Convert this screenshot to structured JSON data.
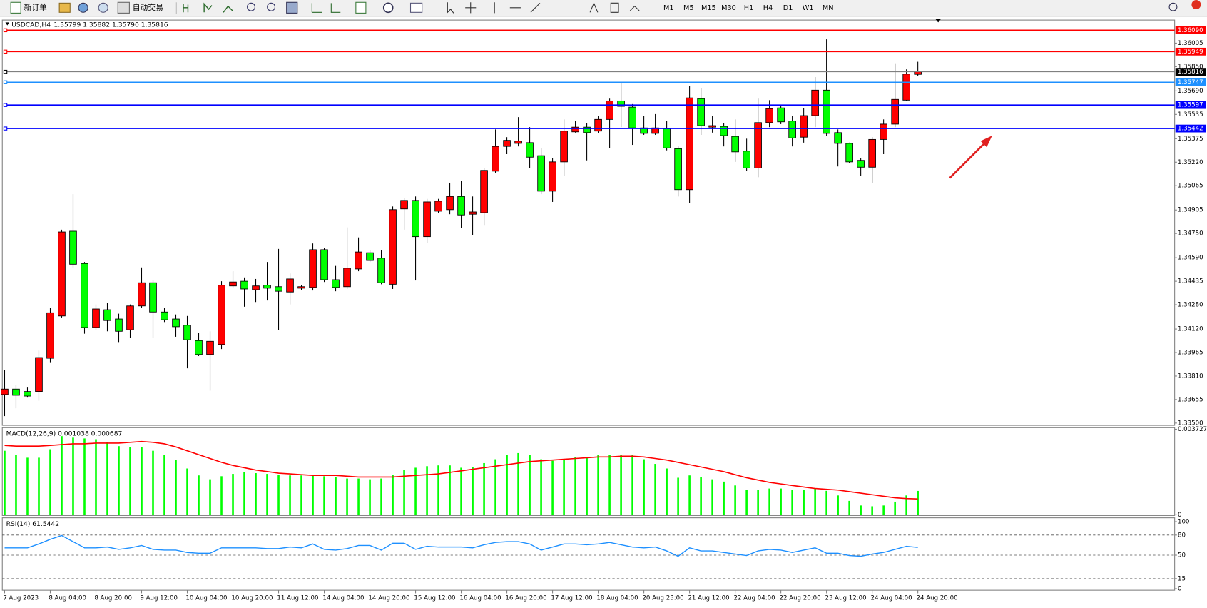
{
  "toolbar": {
    "buttons": [
      "新订单",
      "自动交易"
    ],
    "timeframes": [
      "M1",
      "M5",
      "M15",
      "M30",
      "H1",
      "H4",
      "D1",
      "W1",
      "MN"
    ]
  },
  "chart_data": [
    {
      "type": "candlestick",
      "title": "USDCAD,H4",
      "ohlc_label": "1.35799 1.35882 1.35790 1.35816",
      "categories": [
        "7 Aug 2023",
        null,
        null,
        null,
        "8 Aug 04:00",
        null,
        null,
        null,
        "8 Aug 20:00",
        null,
        null,
        null,
        "9 Aug 12:00",
        null,
        null,
        null,
        "10 Aug 04:00",
        null,
        null,
        null,
        "10 Aug 20:00",
        null,
        null,
        null,
        "11 Aug 12:00",
        null,
        null,
        null,
        "14 Aug 04:00",
        null,
        null,
        null,
        "14 Aug 20:00",
        null,
        null,
        null,
        "15 Aug 12:00",
        null,
        null,
        null,
        "16 Aug 04:00",
        null,
        null,
        null,
        "16 Aug 20:00",
        null,
        null,
        null,
        "17 Aug 12:00",
        null,
        null,
        null,
        "18 Aug 04:00",
        null,
        null,
        null,
        "20 Aug 23:00",
        null,
        null,
        null,
        "21 Aug 12:00",
        null,
        null,
        null,
        "22 Aug 04:00",
        null,
        null,
        null,
        "22 Aug 20:00",
        null,
        null,
        null,
        "23 Aug 12:00",
        null,
        null,
        null,
        "24 Aug 04:00",
        null,
        null,
        null,
        "24 Aug 20:00"
      ],
      "open": [
        1.33688,
        1.33724,
        1.33708,
        1.33708,
        1.33927,
        1.34206,
        1.34765,
        1.34552,
        1.3413,
        1.34247,
        1.34186,
        1.34115,
        1.34272,
        1.34425,
        1.34232,
        1.34186,
        1.34145,
        1.34044,
        1.33952,
        1.34018,
        1.34404,
        1.34435,
        1.34379,
        1.34409,
        1.34399,
        1.34364,
        1.34389,
        1.34394,
        1.34643,
        1.34445,
        1.34399,
        1.34516,
        1.34623,
        1.34587,
        1.34415,
        1.34912,
        1.34968,
        1.34729,
        1.34897,
        1.34907,
        1.34994,
        1.34877,
        1.34887,
        1.35161,
        1.35324,
        1.35344,
        1.35349,
        1.35263,
        1.35029,
        1.35222,
        1.3542,
        1.35451,
        1.35425,
        1.35502,
        1.35624,
        1.35583,
        1.35446,
        1.3541,
        1.35441,
        1.35309,
        1.35039,
        1.35639,
        1.35451,
        1.35456,
        1.3539,
        1.35293,
        1.35182,
        1.35481,
        1.35578,
        1.35491,
        1.35385,
        1.35527,
        1.35695,
        1.35415,
        1.35344,
        1.35232,
        1.35187,
        1.3537,
        1.35471,
        1.35629,
        1.35799
      ],
      "high": [
        1.33851,
        1.33749,
        1.33734,
        1.33978,
        1.34257,
        1.34775,
        1.35009,
        1.34562,
        1.34282,
        1.34293,
        1.34221,
        1.34282,
        1.34526,
        1.34445,
        1.34257,
        1.34216,
        1.34206,
        1.34094,
        1.34105,
        1.34435,
        1.34501,
        1.3446,
        1.3445,
        1.34562,
        1.34648,
        1.34486,
        1.34409,
        1.34684,
        1.34653,
        1.34536,
        1.3479,
        1.34724,
        1.34638,
        1.34638,
        1.34928,
        1.34983,
        1.34994,
        1.34978,
        1.34978,
        1.35085,
        1.35095,
        1.34994,
        1.35182,
        1.35436,
        1.35385,
        1.35517,
        1.35451,
        1.35314,
        1.35248,
        1.35502,
        1.35491,
        1.35476,
        1.35527,
        1.35639,
        1.3574,
        1.35603,
        1.35527,
        1.35537,
        1.35491,
        1.35324,
        1.3572,
        1.3571,
        1.35527,
        1.35476,
        1.35502,
        1.35375,
        1.35639,
        1.35629,
        1.35593,
        1.35527,
        1.35578,
        1.35781,
        1.3603,
        1.35436,
        1.35349,
        1.35248,
        1.35385,
        1.35502,
        1.35872,
        1.35832,
        1.35882
      ],
      "low": [
        1.33546,
        1.33597,
        1.33668,
        1.33647,
        1.33901,
        1.34196,
        1.34526,
        1.34089,
        1.34115,
        1.34105,
        1.34034,
        1.34064,
        1.34257,
        1.34064,
        1.34166,
        1.34069,
        1.33861,
        1.33942,
        1.33713,
        1.33988,
        1.34394,
        1.34267,
        1.34298,
        1.34308,
        1.34115,
        1.34282,
        1.34379,
        1.34374,
        1.3443,
        1.34369,
        1.34384,
        1.34501,
        1.34562,
        1.34415,
        1.34384,
        1.34775,
        1.3444,
        1.34689,
        1.34887,
        1.34877,
        1.34785,
        1.3474,
        1.34806,
        1.35146,
        1.35273,
        1.35324,
        1.35182,
        1.35009,
        1.34958,
        1.35131,
        1.35415,
        1.35232,
        1.3541,
        1.35314,
        1.35451,
        1.35334,
        1.354,
        1.354,
        1.35298,
        1.34994,
        1.34953,
        1.354,
        1.35415,
        1.35324,
        1.35222,
        1.35161,
        1.35121,
        1.35451,
        1.35471,
        1.35324,
        1.35349,
        1.35451,
        1.35395,
        1.35192,
        1.35212,
        1.35131,
        1.35085,
        1.35273,
        1.35451,
        1.35624,
        1.3579
      ],
      "close": [
        1.33724,
        1.33683,
        1.33678,
        1.33932,
        1.34227,
        1.3476,
        1.34547,
        1.3413,
        1.34252,
        1.34176,
        1.34105,
        1.34272,
        1.34425,
        1.34232,
        1.34181,
        1.34135,
        1.34049,
        1.33952,
        1.34039,
        1.34409,
        1.3443,
        1.34384,
        1.34404,
        1.34389,
        1.34369,
        1.3445,
        1.34399,
        1.34643,
        1.34445,
        1.34394,
        1.34521,
        1.34628,
        1.34572,
        1.34425,
        1.34907,
        1.34968,
        1.34729,
        1.34958,
        1.34963,
        1.34994,
        1.34872,
        1.34892,
        1.35166,
        1.35324,
        1.35364,
        1.35359,
        1.35253,
        1.35029,
        1.35222,
        1.35425,
        1.35451,
        1.35415,
        1.35502,
        1.35624,
        1.35588,
        1.35446,
        1.3541,
        1.35446,
        1.35314,
        1.35039,
        1.35644,
        1.35461,
        1.35461,
        1.35395,
        1.35288,
        1.35182,
        1.35481,
        1.35573,
        1.35486,
        1.3538,
        1.35527,
        1.35695,
        1.3541,
        1.35344,
        1.35222,
        1.35187,
        1.3537,
        1.35471,
        1.35634,
        1.35801,
        1.35816
      ],
      "up_color": "#ff0000",
      "down_color": "#00ff00",
      "ylim": [
        1.3349,
        1.36152
      ],
      "yticks": [
        {
          "value": 1.36005,
          "label": "1.36005"
        },
        {
          "value": 1.3585,
          "label": "1.35850"
        },
        {
          "value": 1.3569,
          "label": "1.35690"
        },
        {
          "value": 1.35535,
          "label": "1.35535"
        },
        {
          "value": 1.35375,
          "label": "1.35375"
        },
        {
          "value": 1.3522,
          "label": "1.35220"
        },
        {
          "value": 1.35065,
          "label": "1.35065"
        },
        {
          "value": 1.34905,
          "label": "1.34905"
        },
        {
          "value": 1.3475,
          "label": "1.34750"
        },
        {
          "value": 1.3459,
          "label": "1.34590"
        },
        {
          "value": 1.34435,
          "label": "1.34435"
        },
        {
          "value": 1.3428,
          "label": "1.34280"
        },
        {
          "value": 1.3412,
          "label": "1.34120"
        },
        {
          "value": 1.33965,
          "label": "1.33965"
        },
        {
          "value": 1.3381,
          "label": "1.33810"
        },
        {
          "value": 1.33655,
          "label": "1.33655"
        },
        {
          "value": 1.335,
          "label": "1.33500"
        }
      ],
      "levels": [
        {
          "value": 1.3609,
          "label": "1.36090",
          "color": "#ff0000"
        },
        {
          "value": 1.35949,
          "label": "1.35949",
          "color": "#ff0000"
        },
        {
          "value": 1.35816,
          "label": "1.35816",
          "color": "#000000"
        },
        {
          "value": 1.35747,
          "label": "1.35747",
          "color": "#1e90ff"
        },
        {
          "value": 1.35597,
          "label": "1.35597",
          "color": "#0000ff"
        },
        {
          "value": 1.35442,
          "label": "1.35442",
          "color": "#0000ff"
        }
      ],
      "grid": false
    },
    {
      "type": "macd",
      "title": "MACD(12,26,9) 0.001038 0.000687",
      "series": [
        {
          "type": "bar",
          "color": "#00ff00",
          "values": [
            0.002787,
            0.002619,
            0.002485,
            0.002485,
            0.002854,
            0.003425,
            0.003358,
            0.003324,
            0.003291,
            0.003157,
            0.002989,
            0.002955,
            0.002955,
            0.002787,
            0.002619,
            0.002384,
            0.002015,
            0.001713,
            0.001545,
            0.001679,
            0.00178,
            0.001847,
            0.001813,
            0.00178,
            0.001746,
            0.001713,
            0.001713,
            0.001713,
            0.001679,
            0.001645,
            0.001578,
            0.001578,
            0.001545,
            0.001578,
            0.001746,
            0.001948,
            0.002048,
            0.002116,
            0.002149,
            0.002149,
            0.002048,
            0.002082,
            0.00225,
            0.002418,
            0.002619,
            0.002686,
            0.002619,
            0.002418,
            0.002351,
            0.002418,
            0.002519,
            0.002519,
            0.002619,
            0.002619,
            0.002619,
            0.002619,
            0.002418,
            0.002216,
            0.002015,
            0.001612,
            0.001713,
            0.001645,
            0.001545,
            0.001444,
            0.001276,
            0.001075,
            0.001075,
            0.001142,
            0.001142,
            0.001075,
            0.001075,
            0.001142,
            0.001041,
            0.00084,
            0.000604,
            0.000403,
            0.000369,
            0.000403,
            0.000571,
            0.00084,
            0.001038
          ]
        },
        {
          "type": "line",
          "color": "#ff0000",
          "values": [
            0.003022,
            0.002989,
            0.002989,
            0.002989,
            0.003022,
            0.003056,
            0.003089,
            0.003089,
            0.003123,
            0.003123,
            0.003123,
            0.003157,
            0.00319,
            0.003157,
            0.003089,
            0.002955,
            0.002787,
            0.002619,
            0.002451,
            0.002283,
            0.002149,
            0.002048,
            0.001948,
            0.00188,
            0.001813,
            0.00178,
            0.001746,
            0.001713,
            0.001713,
            0.001713,
            0.001679,
            0.001645,
            0.001645,
            0.001645,
            0.001645,
            0.001679,
            0.001713,
            0.001746,
            0.00178,
            0.001847,
            0.001914,
            0.001981,
            0.002048,
            0.002116,
            0.002183,
            0.00225,
            0.002317,
            0.002351,
            0.002384,
            0.002418,
            0.002451,
            0.002485,
            0.002519,
            0.002519,
            0.002552,
            0.002552,
            0.002519,
            0.002451,
            0.002384,
            0.002283,
            0.002183,
            0.002082,
            0.001981,
            0.00188,
            0.001746,
            0.001612,
            0.001511,
            0.00141,
            0.001343,
            0.001276,
            0.001209,
            0.001142,
            0.001108,
            0.001075,
            0.001007,
            0.00094,
            0.000873,
            0.000806,
            0.000739,
            0.000705,
            0.000687
          ]
        }
      ],
      "ylim": [
        0,
        0.003727
      ],
      "yticks": [
        0,
        0.003727
      ]
    },
    {
      "type": "line",
      "title": "RSI(14) 61.5442",
      "color": "#1e90ff",
      "values": [
        60.9,
        60.9,
        60.9,
        66.7,
        73.6,
        79.3,
        70.1,
        60.9,
        60.9,
        62.1,
        58.6,
        60.9,
        64.4,
        58.6,
        57.5,
        57.5,
        54.0,
        52.9,
        52.9,
        60.9,
        60.9,
        60.9,
        60.9,
        59.8,
        59.8,
        62.1,
        60.9,
        66.7,
        58.6,
        57.5,
        59.8,
        64.4,
        64.4,
        57.5,
        67.8,
        67.8,
        58.6,
        63.2,
        62.1,
        62.1,
        62.1,
        60.9,
        65.5,
        69.0,
        70.1,
        70.1,
        66.7,
        57.5,
        62.1,
        66.7,
        66.7,
        65.5,
        66.7,
        69.0,
        65.5,
        62.1,
        60.9,
        62.1,
        56.3,
        48.3,
        60.9,
        56.3,
        56.3,
        54.0,
        51.7,
        49.4,
        56.3,
        58.6,
        57.5,
        54.0,
        57.5,
        60.9,
        52.9,
        52.9,
        49.4,
        48.3,
        51.7,
        54.0,
        58.6,
        63.2,
        61.5442
      ],
      "ylim": [
        0,
        100
      ],
      "yticks": [
        100,
        80,
        50,
        15,
        0
      ],
      "levels": [
        80,
        50,
        15
      ]
    }
  ]
}
